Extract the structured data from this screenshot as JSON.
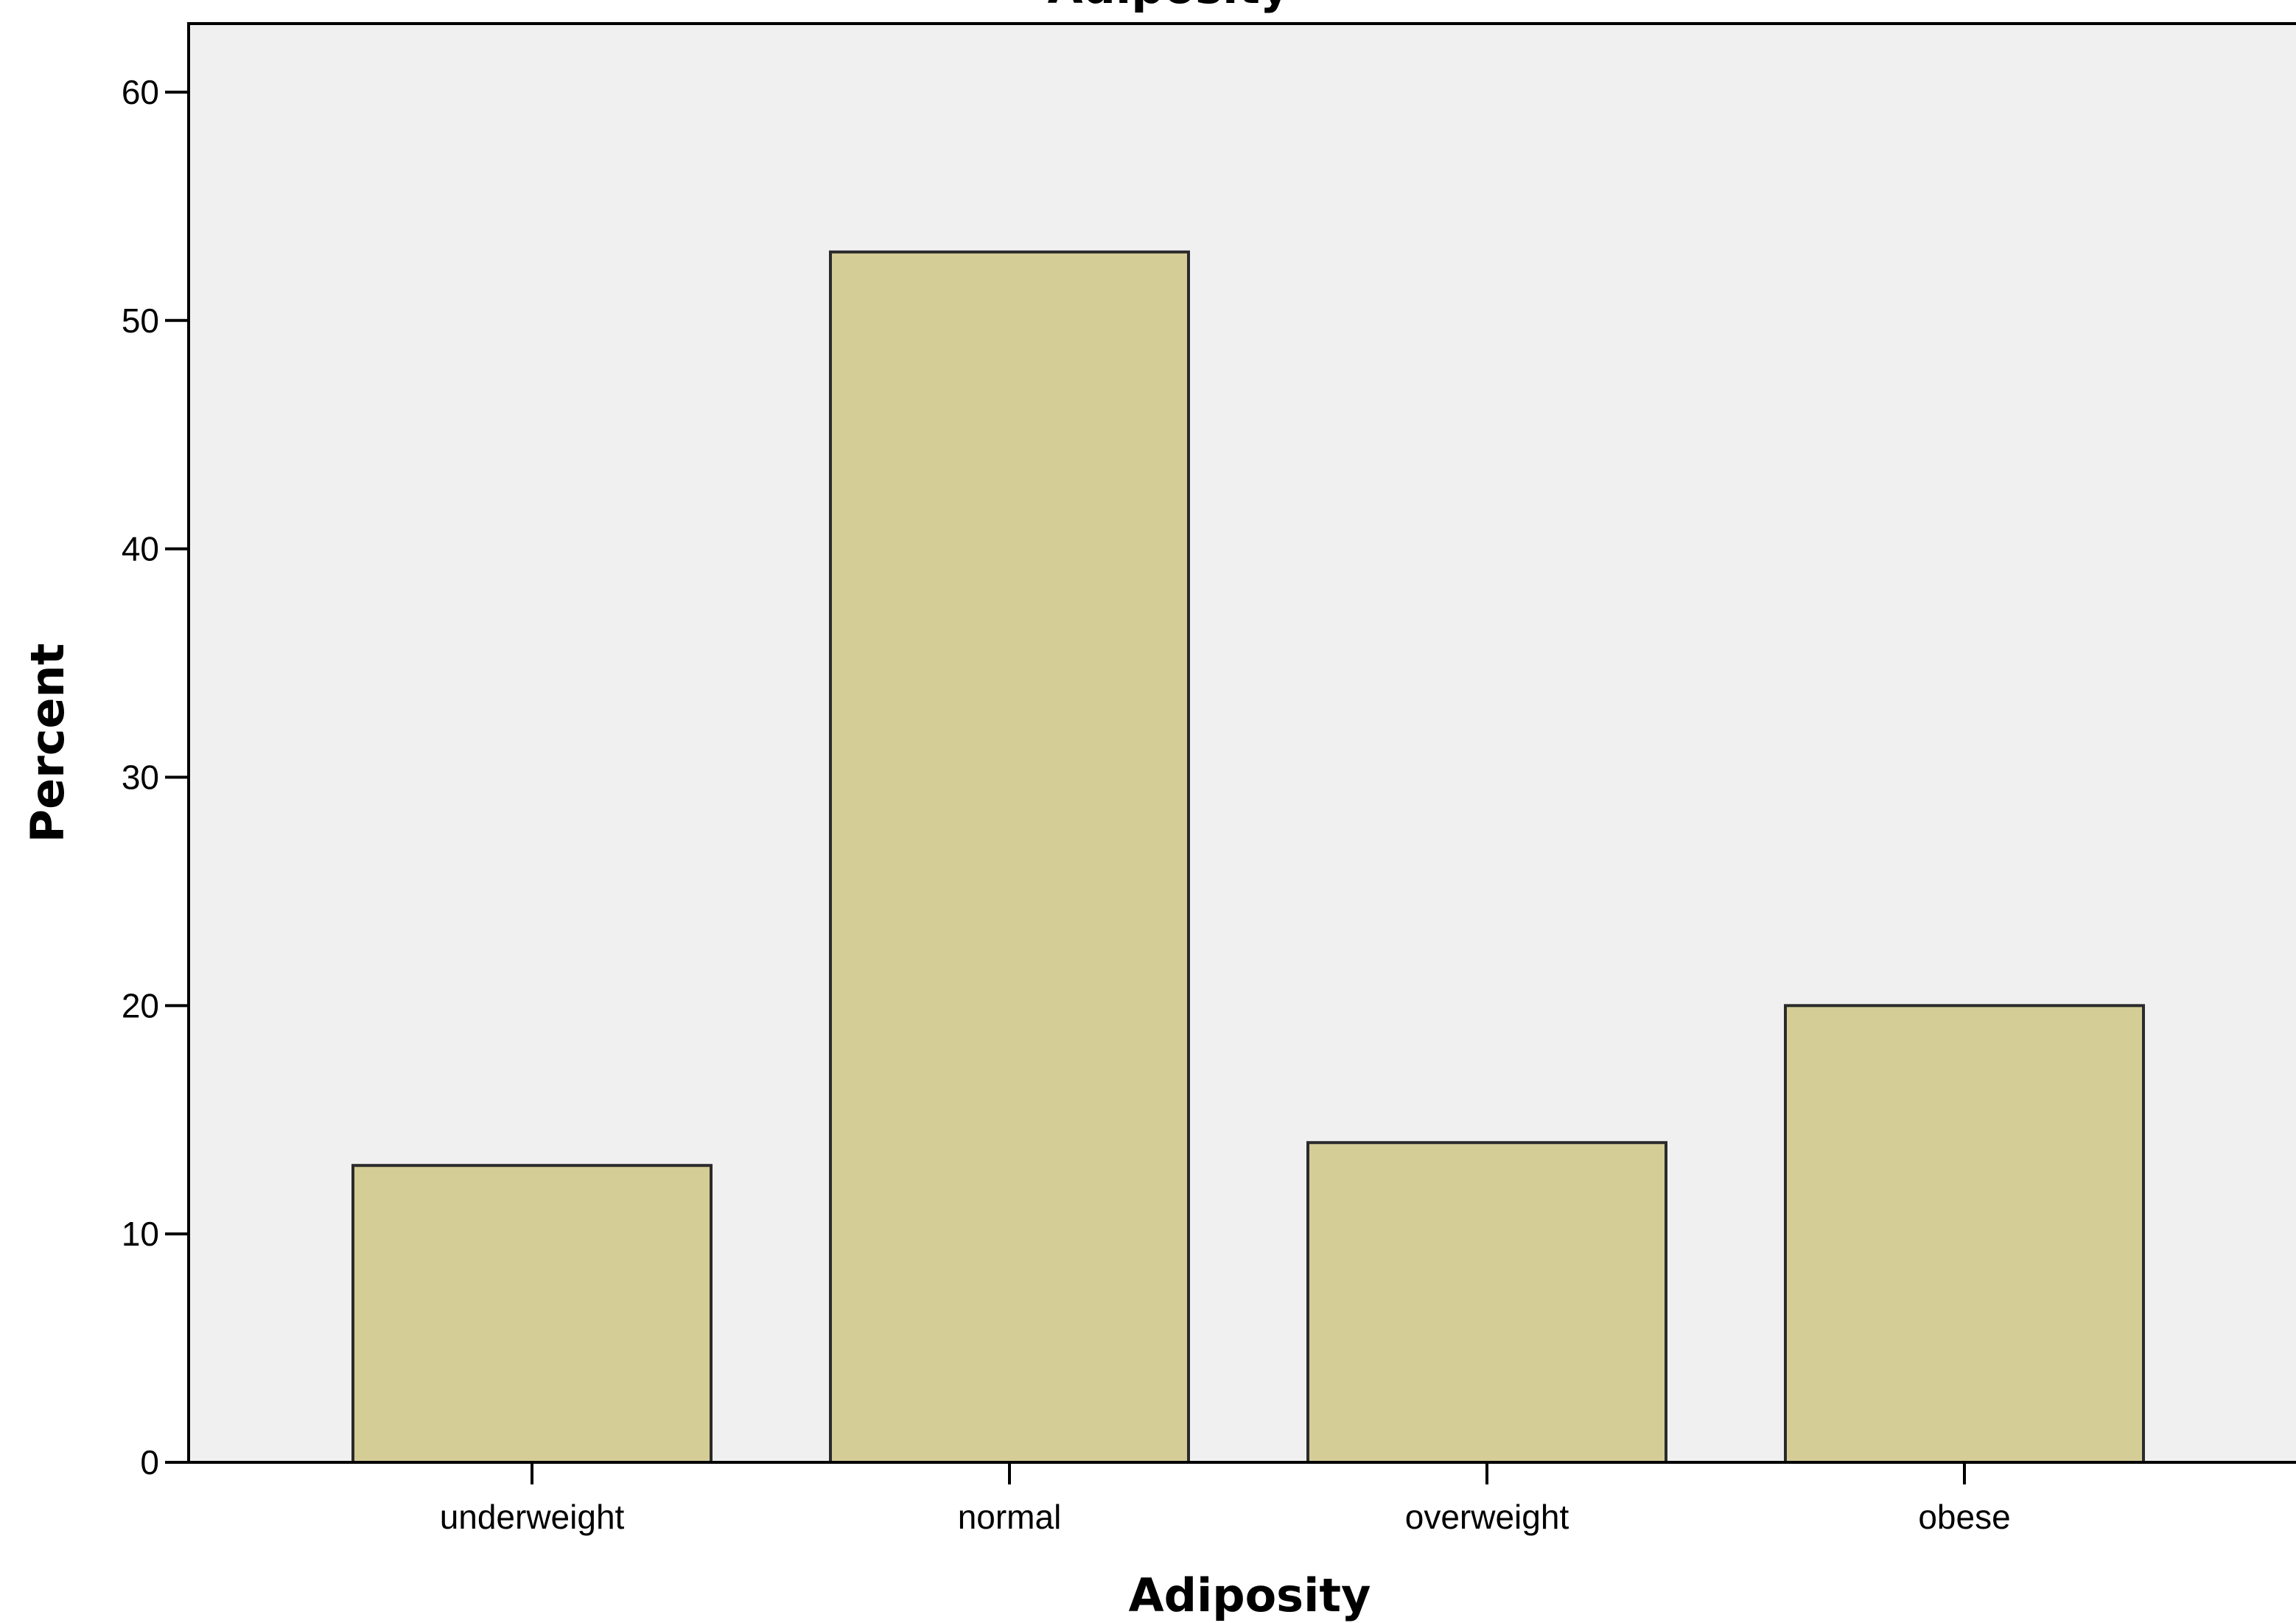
{
  "chart_data": {
    "type": "bar",
    "title": "Adiposity",
    "xlabel": "Adiposity",
    "ylabel": "Percent",
    "categories": [
      "underweight",
      "normal",
      "overweight",
      "obese"
    ],
    "values": [
      13,
      53,
      14,
      20
    ],
    "ylim": [
      0,
      63
    ],
    "yticks": [
      0,
      10,
      20,
      30,
      40,
      50,
      60
    ],
    "grid": false,
    "legend": "none",
    "colors": {
      "bar_fill": "#d4cd96",
      "bar_stroke": "#2b2b2b",
      "plot_background": "#f0f0f0",
      "axis": "#000000"
    }
  }
}
